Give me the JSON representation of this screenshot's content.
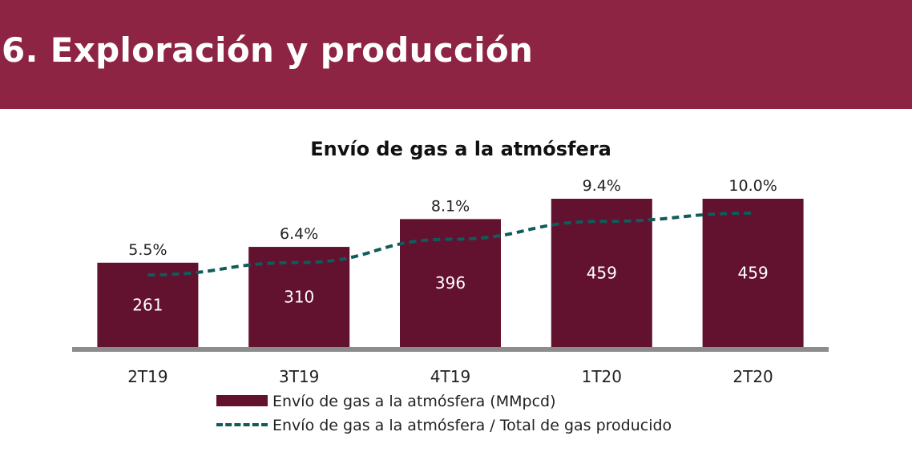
{
  "header": {
    "title": "6. Exploración y producción",
    "color": "#8e2444"
  },
  "chart_data": {
    "type": "bar",
    "title": "Envío de gas a la atmósfera",
    "categories": [
      "2T19",
      "3T19",
      "4T19",
      "1T20",
      "2T20"
    ],
    "series": [
      {
        "name": "Envío de gas a la atmósfera (MMpcd)",
        "type": "bar",
        "values": [
          261,
          310,
          396,
          459,
          459
        ],
        "labels": [
          "261",
          "310",
          "396",
          "459",
          "459"
        ],
        "color": "#62112f"
      },
      {
        "name": "Envío de gas a la atmósfera / Total de gas producido",
        "type": "line",
        "style": "dashed",
        "values": [
          5.5,
          6.4,
          8.1,
          9.4,
          10.0
        ],
        "labels": [
          "5.5%",
          "6.4%",
          "8.1%",
          "9.4%",
          "10.0%"
        ],
        "color": "#0f5c5a"
      }
    ],
    "legend_position": "bottom",
    "grid": false,
    "axis_color": "#8c8c8c"
  }
}
